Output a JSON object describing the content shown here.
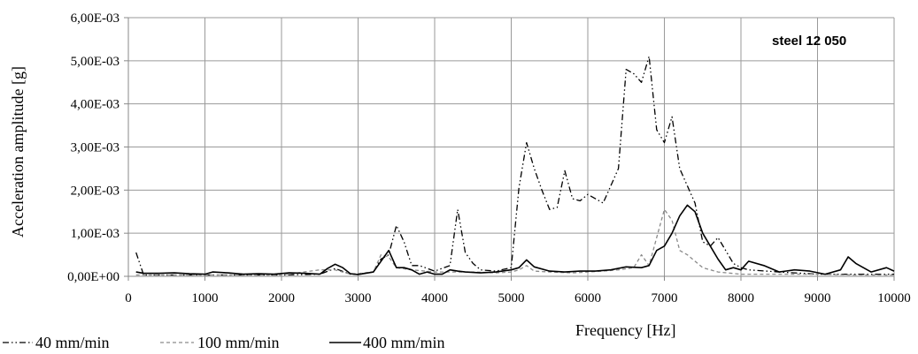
{
  "chart_data": {
    "type": "line",
    "title": "",
    "annotation": "steel 12 050",
    "xlabel": "Frequency [Hz]",
    "ylabel": "Acceleration amplitude [g]",
    "xlim": [
      0,
      10000
    ],
    "ylim": [
      0,
      0.006
    ],
    "x_ticks": [
      "0",
      "1000",
      "2000",
      "3000",
      "4000",
      "5000",
      "6000",
      "7000",
      "8000",
      "9000",
      "10000"
    ],
    "y_ticks": [
      "0,00E+00",
      "1,00E-03",
      "2,00E-03",
      "3,00E-03",
      "4,00E-03",
      "5,00E-03",
      "6,00E-03"
    ],
    "grid": true,
    "legend_position": "bottom-left",
    "series": [
      {
        "name": "40 mm/min",
        "style": "dash-dot-dot",
        "color": "#000000",
        "points": [
          [
            100,
            0.00055
          ],
          [
            200,
            3e-05
          ],
          [
            500,
            3e-05
          ],
          [
            1000,
            3e-05
          ],
          [
            1500,
            3e-05
          ],
          [
            2000,
            3e-05
          ],
          [
            2500,
            5e-05
          ],
          [
            2700,
            0.00018
          ],
          [
            2900,
            5e-05
          ],
          [
            3000,
            5e-05
          ],
          [
            3200,
            0.0001
          ],
          [
            3300,
            0.0004
          ],
          [
            3400,
            0.0005
          ],
          [
            3500,
            0.00118
          ],
          [
            3600,
            0.0008
          ],
          [
            3700,
            0.00025
          ],
          [
            3800,
            0.00025
          ],
          [
            4000,
            0.00012
          ],
          [
            4200,
            0.00025
          ],
          [
            4300,
            0.00155
          ],
          [
            4400,
            0.00055
          ],
          [
            4500,
            0.0003
          ],
          [
            4600,
            0.00015
          ],
          [
            4800,
            0.00012
          ],
          [
            5000,
            0.0002
          ],
          [
            5100,
            0.00205
          ],
          [
            5200,
            0.0031
          ],
          [
            5300,
            0.0025
          ],
          [
            5400,
            0.002
          ],
          [
            5500,
            0.00155
          ],
          [
            5600,
            0.0016
          ],
          [
            5700,
            0.00245
          ],
          [
            5800,
            0.0018
          ],
          [
            5900,
            0.00175
          ],
          [
            6000,
            0.0019
          ],
          [
            6100,
            0.0018
          ],
          [
            6200,
            0.0017
          ],
          [
            6300,
            0.0021
          ],
          [
            6400,
            0.0025
          ],
          [
            6500,
            0.0048
          ],
          [
            6600,
            0.0047
          ],
          [
            6700,
            0.0045
          ],
          [
            6800,
            0.0051
          ],
          [
            6900,
            0.0034
          ],
          [
            7000,
            0.0031
          ],
          [
            7100,
            0.0037
          ],
          [
            7200,
            0.0025
          ],
          [
            7300,
            0.0021
          ],
          [
            7400,
            0.0017
          ],
          [
            7500,
            0.0008
          ],
          [
            7600,
            0.0007
          ],
          [
            7700,
            0.0009
          ],
          [
            7800,
            0.0006
          ],
          [
            7900,
            0.0003
          ],
          [
            8000,
            0.0002
          ],
          [
            8100,
            0.00015
          ],
          [
            8500,
            0.0001
          ],
          [
            9000,
            5e-05
          ],
          [
            9500,
            5e-05
          ],
          [
            10000,
            5e-05
          ]
        ]
      },
      {
        "name": "100 mm/min",
        "style": "dashed",
        "color": "#8a8a8a",
        "points": [
          [
            100,
            3e-05
          ],
          [
            500,
            3e-05
          ],
          [
            1000,
            3e-05
          ],
          [
            1500,
            3e-05
          ],
          [
            2000,
            3e-05
          ],
          [
            2500,
            0.00015
          ],
          [
            2700,
            0.00015
          ],
          [
            2900,
            5e-05
          ],
          [
            3200,
            0.0001
          ],
          [
            3300,
            0.0005
          ],
          [
            3400,
            0.00045
          ],
          [
            3500,
            0.0002
          ],
          [
            3700,
            0.00015
          ],
          [
            4000,
            0.0001
          ],
          [
            4300,
            0.0001
          ],
          [
            4500,
            0.0001
          ],
          [
            4800,
            8e-05
          ],
          [
            5000,
            0.0001
          ],
          [
            5100,
            0.00015
          ],
          [
            5200,
            0.00025
          ],
          [
            5300,
            0.00012
          ],
          [
            5500,
            0.0001
          ],
          [
            5800,
            8e-05
          ],
          [
            6000,
            0.0001
          ],
          [
            6200,
            0.00012
          ],
          [
            6400,
            0.00015
          ],
          [
            6600,
            0.0002
          ],
          [
            6700,
            0.0005
          ],
          [
            6800,
            0.00025
          ],
          [
            6900,
            0.0009
          ],
          [
            7000,
            0.00155
          ],
          [
            7100,
            0.0013
          ],
          [
            7200,
            0.0006
          ],
          [
            7300,
            0.0005
          ],
          [
            7500,
            0.0002
          ],
          [
            7700,
            0.0001
          ],
          [
            8000,
            5e-05
          ],
          [
            8500,
            5e-05
          ],
          [
            9000,
            5e-05
          ],
          [
            9500,
            3e-05
          ],
          [
            10000,
            3e-05
          ]
        ]
      },
      {
        "name": "400 mm/min",
        "style": "solid",
        "color": "#000000",
        "points": [
          [
            100,
            0.0001
          ],
          [
            200,
            7e-05
          ],
          [
            400,
            7e-05
          ],
          [
            600,
            8e-05
          ],
          [
            800,
            6e-05
          ],
          [
            1000,
            5e-05
          ],
          [
            1100,
            0.0001
          ],
          [
            1300,
            8e-05
          ],
          [
            1500,
            5e-05
          ],
          [
            1700,
            6e-05
          ],
          [
            1900,
            5e-05
          ],
          [
            2100,
            8e-05
          ],
          [
            2300,
            7e-05
          ],
          [
            2500,
            5e-05
          ],
          [
            2600,
            0.00018
          ],
          [
            2700,
            0.00028
          ],
          [
            2800,
            0.0002
          ],
          [
            2900,
            6e-05
          ],
          [
            3000,
            4e-05
          ],
          [
            3100,
            7e-05
          ],
          [
            3200,
            0.0001
          ],
          [
            3300,
            0.00035
          ],
          [
            3400,
            0.0006
          ],
          [
            3500,
            0.0002
          ],
          [
            3600,
            0.0002
          ],
          [
            3700,
            0.00015
          ],
          [
            3800,
            5e-05
          ],
          [
            3900,
            0.0001
          ],
          [
            4000,
            5e-05
          ],
          [
            4100,
            5e-05
          ],
          [
            4200,
            0.00015
          ],
          [
            4300,
            0.00012
          ],
          [
            4400,
            0.0001
          ],
          [
            4600,
            8e-05
          ],
          [
            4800,
            0.0001
          ],
          [
            5000,
            0.00015
          ],
          [
            5100,
            0.0002
          ],
          [
            5200,
            0.00038
          ],
          [
            5300,
            0.00022
          ],
          [
            5500,
            0.00012
          ],
          [
            5700,
            0.0001
          ],
          [
            5900,
            0.00012
          ],
          [
            6100,
            0.00012
          ],
          [
            6300,
            0.00015
          ],
          [
            6500,
            0.00022
          ],
          [
            6700,
            0.0002
          ],
          [
            6800,
            0.00025
          ],
          [
            6900,
            0.0006
          ],
          [
            7000,
            0.0007
          ],
          [
            7100,
            0.001
          ],
          [
            7200,
            0.0014
          ],
          [
            7300,
            0.00165
          ],
          [
            7400,
            0.0015
          ],
          [
            7500,
            0.001
          ],
          [
            7600,
            0.0007
          ],
          [
            7700,
            0.0004
          ],
          [
            7800,
            0.00015
          ],
          [
            7900,
            0.0002
          ],
          [
            8000,
            0.00015
          ],
          [
            8100,
            0.00035
          ],
          [
            8300,
            0.00025
          ],
          [
            8500,
            0.0001
          ],
          [
            8700,
            0.00015
          ],
          [
            8900,
            0.00012
          ],
          [
            9100,
            5e-05
          ],
          [
            9300,
            0.00015
          ],
          [
            9400,
            0.00045
          ],
          [
            9500,
            0.0003
          ],
          [
            9700,
            0.0001
          ],
          [
            9900,
            0.0002
          ],
          [
            10000,
            0.00012
          ]
        ]
      }
    ]
  }
}
